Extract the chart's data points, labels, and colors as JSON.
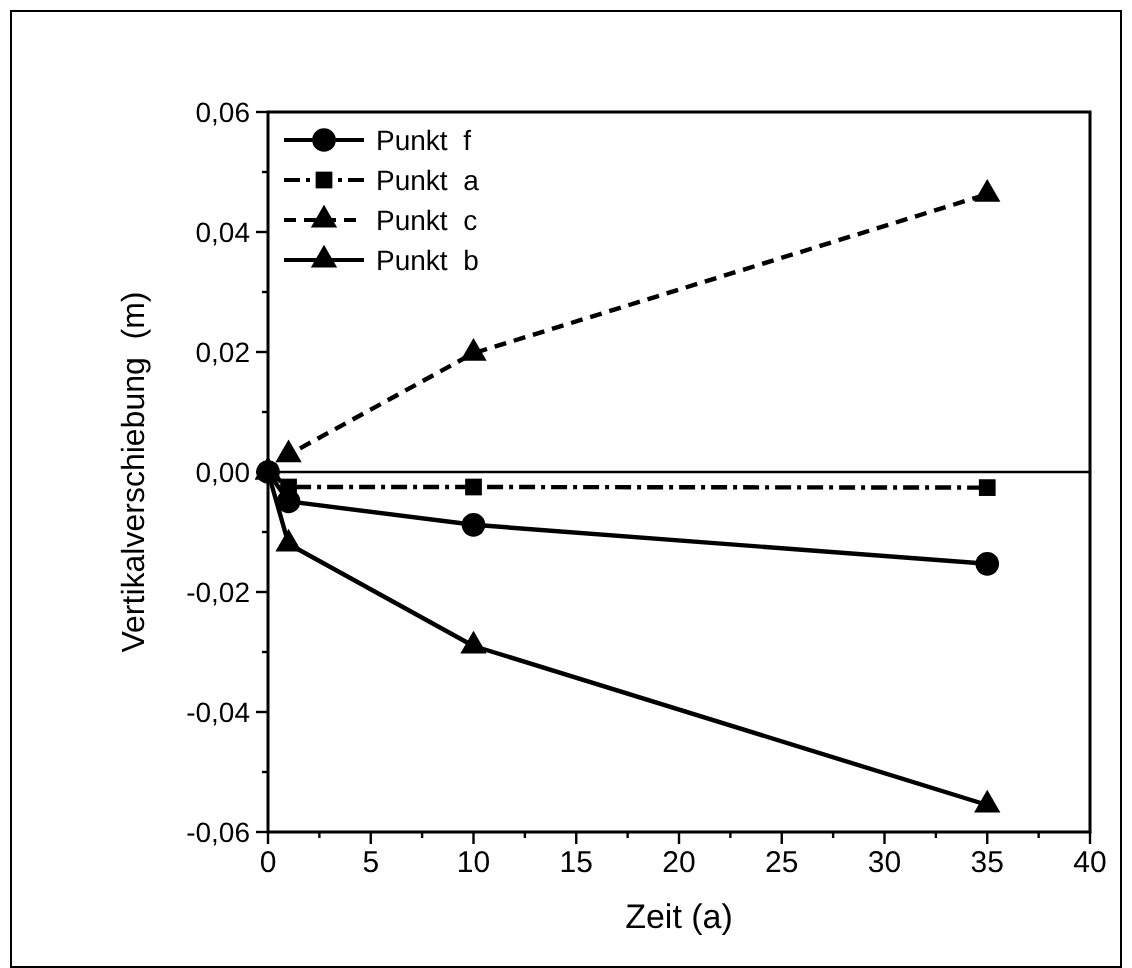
{
  "chart_data": {
    "type": "line",
    "xlabel": "Zeit (a)",
    "ylabel": "Vertikalverschiebung  (m)",
    "x": [
      0,
      1,
      10,
      35
    ],
    "series": [
      {
        "name": "Punkt  f",
        "color": "#000000",
        "marker": "circle",
        "line_style": "solid",
        "values": [
          0,
          -0.0049,
          -0.0088,
          -0.0153
        ]
      },
      {
        "name": "Punkt  a",
        "color": "#000000",
        "marker": "square",
        "line_style": "dashdot",
        "values": [
          0,
          -0.0025,
          -0.0025,
          -0.0026
        ]
      },
      {
        "name": "Punkt  c",
        "color": "#000000",
        "marker": "triangle",
        "line_style": "dashed",
        "values": [
          0,
          0.0029,
          0.0198,
          0.0463
        ]
      },
      {
        "name": "Punkt  b",
        "color": "#000000",
        "marker": "triangle",
        "line_style": "solid",
        "values": [
          0,
          -0.012,
          -0.029,
          -0.0555
        ]
      }
    ],
    "xlim": [
      0,
      40
    ],
    "xticks": [
      0,
      {
        "value": 2.5,
        "label": null
      },
      5,
      {
        "value": 7.5,
        "label": null
      },
      10,
      {
        "value": 12.5,
        "label": null
      },
      15,
      {
        "value": 17.5,
        "label": null
      },
      20,
      {
        "value": 22.5,
        "label": null
      },
      25,
      {
        "value": 27.5,
        "label": null
      },
      30,
      {
        "value": 32.5,
        "label": null
      },
      35,
      {
        "value": 37.5,
        "label": null
      },
      40
    ],
    "ylim": [
      -0.06,
      0.06
    ],
    "yticks": [
      {
        "value": -0.06,
        "label": "-0,06"
      },
      {
        "value": -0.05,
        "label": null
      },
      {
        "value": -0.04,
        "label": "-0,04"
      },
      {
        "value": -0.03,
        "label": null
      },
      {
        "value": -0.02,
        "label": "-0,02"
      },
      {
        "value": -0.01,
        "label": null
      },
      {
        "value": 0,
        "label": "0,00"
      },
      {
        "value": 0.01,
        "label": null
      },
      {
        "value": 0.02,
        "label": "0,02"
      },
      {
        "value": 0.03,
        "label": null
      },
      {
        "value": 0.04,
        "label": "0,04"
      },
      {
        "value": 0.05,
        "label": null
      },
      {
        "value": 0.06,
        "label": "0,06"
      }
    ],
    "ref_lines": [
      {
        "axis": "y",
        "value": 0,
        "color": "#000000",
        "line_style": "solid"
      }
    ],
    "grid": false,
    "legend": "top left"
  }
}
